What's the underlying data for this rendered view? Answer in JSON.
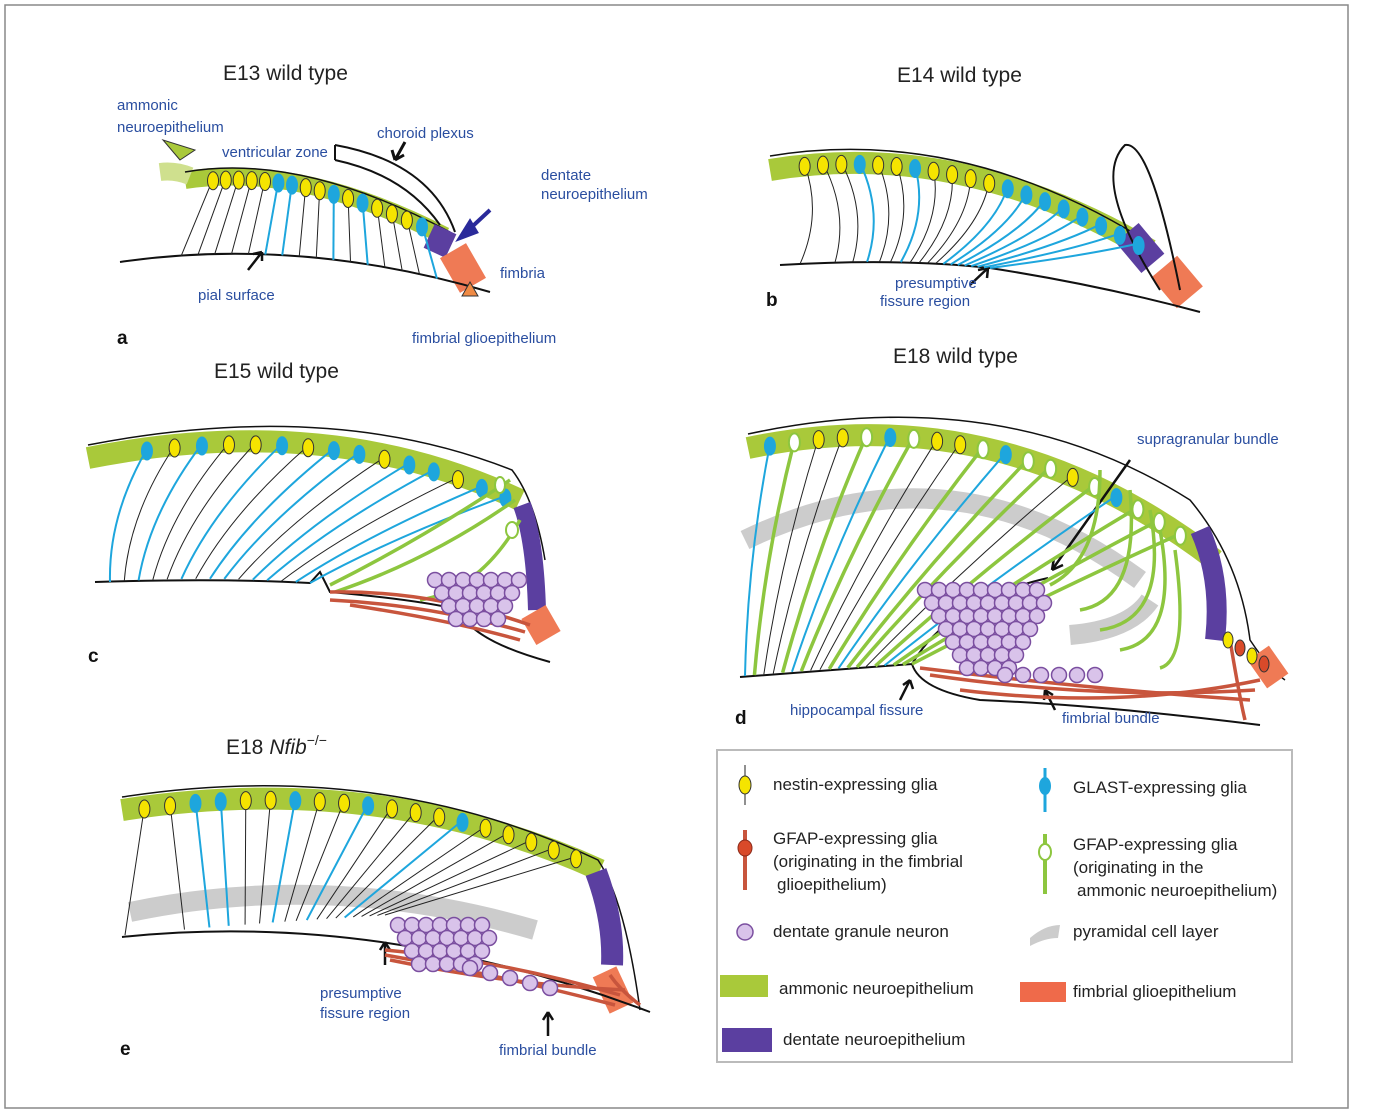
{
  "panels": [
    {
      "letter": "a",
      "title": "E13 wild type",
      "labels": [
        {
          "lines": [
            "ammonic",
            "neuroepithelium"
          ]
        },
        {
          "lines": [
            "ventricular zone"
          ]
        },
        {
          "lines": [
            "choroid plexus"
          ]
        },
        {
          "lines": [
            "dentate",
            "neuroepithelium"
          ]
        },
        {
          "lines": [
            "fimbria"
          ]
        },
        {
          "lines": [
            "pial surface"
          ]
        },
        {
          "lines": [
            "fimbrial glioepithelium"
          ]
        }
      ]
    },
    {
      "letter": "b",
      "title": "E14 wild type",
      "labels": [
        {
          "lines": [
            "presumptive",
            "fissure region"
          ]
        }
      ]
    },
    {
      "letter": "c",
      "title": "E15 wild type"
    },
    {
      "letter": "d",
      "title": "E18 wild type",
      "labels": [
        {
          "lines": [
            "supragranular bundle"
          ]
        },
        {
          "lines": [
            "hippocampal fissure"
          ]
        },
        {
          "lines": [
            "fimbrial bundle"
          ]
        }
      ]
    },
    {
      "letter": "e",
      "title": "E18",
      "gene": "Nfib",
      "superscript": "−/−",
      "labels": [
        {
          "lines": [
            "presumptive",
            "fissure region"
          ]
        },
        {
          "lines": [
            "fimbrial bundle"
          ]
        }
      ]
    }
  ],
  "legend": [
    {
      "lines": [
        "nestin-expressing glia"
      ]
    },
    {
      "lines": [
        "GLAST-expressing glia"
      ]
    },
    {
      "lines": [
        "GFAP-expressing glia",
        "(originating in the fimbrial",
        "glioepithelium)"
      ]
    },
    {
      "lines": [
        "GFAP-expressing glia",
        "(originating in the",
        "ammonic neuroepithelium)"
      ]
    },
    {
      "lines": [
        "dentate granule neuron"
      ]
    },
    {
      "lines": [
        "pyramidal cell layer"
      ]
    },
    {
      "lines": [
        "ammonic neuroepithelium"
      ]
    },
    {
      "lines": [
        "fimbrial glioepithelium"
      ]
    },
    {
      "lines": [
        "dentate neuroepithelium"
      ]
    }
  ]
}
